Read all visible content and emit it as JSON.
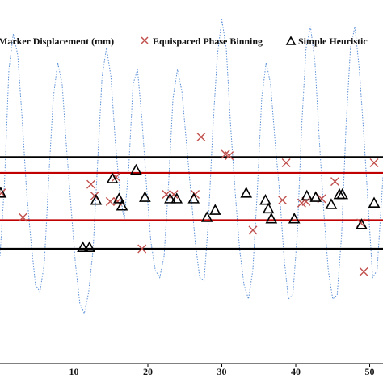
{
  "chart_data": {
    "type": "scatter",
    "title": "",
    "xlabel": "",
    "ylabel": "",
    "x_ticks": [
      10,
      20,
      30,
      40,
      50
    ],
    "x_tick_labels": [
      "10",
      "20",
      "30",
      "40",
      "50"
    ],
    "xlim": [
      0,
      51.8
    ],
    "ylim": [
      -12,
      12
    ],
    "grid": false,
    "legend_position": "top",
    "legend": [
      {
        "label": "Marker Displacement (mm)",
        "marker": "dotted-line",
        "color": "#5b8fd6"
      },
      {
        "label": "Equispaced Phase Binning",
        "marker": "x",
        "color": "#c0504d"
      },
      {
        "label": "Simple Heuristic",
        "marker": "triangle",
        "color": "#000000"
      }
    ],
    "reference_lines": [
      {
        "name": "outer-upper",
        "y": 2.4,
        "color": "#000000"
      },
      {
        "name": "inner-upper",
        "y": 1.3,
        "color": "#c00000"
      },
      {
        "name": "inner-lower",
        "y": -2.0,
        "color": "#c00000"
      },
      {
        "name": "outer-lower",
        "y": -4.0,
        "color": "#000000"
      }
    ],
    "series": [
      {
        "name": "Marker Displacement (mm)",
        "style": "dotted-line",
        "color": "#5b8fd6",
        "x": [
          0.0,
          0.6,
          1.2,
          1.8,
          2.4,
          3.0,
          3.6,
          4.2,
          4.8,
          5.4,
          6.0,
          6.6,
          7.2,
          7.8,
          8.4,
          9.0,
          9.6,
          10.2,
          10.8,
          11.4,
          12.0,
          12.6,
          13.2,
          13.8,
          14.4,
          15.0,
          15.6,
          16.2,
          16.8,
          17.4,
          18.0,
          18.6,
          19.2,
          19.8,
          20.4,
          21.0,
          21.6,
          22.2,
          22.8,
          23.4,
          24.0,
          24.6,
          25.2,
          25.8,
          26.4,
          27.0,
          27.6,
          28.2,
          28.8,
          29.4,
          30.0,
          30.6,
          31.2,
          31.8,
          32.4,
          33.0,
          33.6,
          34.2,
          34.8,
          35.4,
          36.0,
          36.6,
          37.2,
          37.8,
          38.4,
          39.0,
          39.6,
          40.2,
          40.8,
          41.4,
          42.0,
          42.6,
          43.2,
          43.8,
          44.4,
          45.0,
          45.6,
          46.2,
          46.8,
          47.4,
          48.0,
          48.6,
          49.2,
          49.8,
          50.4,
          51.0,
          51.8
        ],
        "y": [
          -4.5,
          0.5,
          8.5,
          11.0,
          9.5,
          5.0,
          0.0,
          -3.5,
          -6.5,
          -7.0,
          -5.0,
          1.0,
          6.5,
          9.0,
          7.5,
          3.0,
          -1.0,
          -5.0,
          -7.8,
          -8.5,
          -7.0,
          -4.0,
          2.0,
          8.0,
          10.0,
          8.0,
          3.5,
          0.0,
          -2.0,
          1.5,
          7.5,
          8.5,
          5.0,
          0.5,
          -3.5,
          -5.5,
          -6.0,
          -4.5,
          0.5,
          6.5,
          8.5,
          7.0,
          3.5,
          0.0,
          -3.5,
          -6.0,
          -6.2,
          -2.0,
          4.5,
          9.5,
          12.0,
          10.0,
          4.5,
          0.0,
          -4.0,
          -6.5,
          -7.5,
          -5.5,
          0.0,
          6.5,
          9.0,
          7.5,
          3.5,
          0.0,
          -4.5,
          -7.5,
          -7.2,
          -3.0,
          4.5,
          10.0,
          11.5,
          9.0,
          3.5,
          -1.5,
          -5.5,
          -7.5,
          -7.2,
          -3.0,
          4.5,
          10.0,
          11.5,
          8.5,
          4.0,
          -1.0,
          -6.0,
          -5.5,
          1.0
        ]
      },
      {
        "name": "Equispaced Phase Binning",
        "marker": "x",
        "color": "#c0504d",
        "x": [
          0.2,
          3.1,
          12.3,
          12.8,
          14.9,
          15.7,
          15.9,
          19.2,
          22.5,
          23.5,
          26.4,
          27.2,
          30.5,
          31.0,
          34.2,
          38.2,
          38.7,
          40.8,
          41.4,
          43.5,
          45.3,
          48.8,
          49.2,
          50.6
        ],
        "y": [
          -0.1,
          -1.8,
          0.5,
          -0.3,
          -0.7,
          1.0,
          -0.7,
          -4.0,
          -0.2,
          -0.2,
          -0.2,
          3.8,
          2.6,
          2.5,
          -2.7,
          -0.6,
          2.0,
          -0.8,
          -0.7,
          -0.5,
          0.7,
          -2.2,
          -5.6,
          2.0
        ]
      },
      {
        "name": "Simple Heuristic",
        "marker": "triangle",
        "color": "#000000",
        "x": [
          0.1,
          11.2,
          12.1,
          13.0,
          15.2,
          16.1,
          16.5,
          18.4,
          19.6,
          23.0,
          23.9,
          26.2,
          28.0,
          29.1,
          33.3,
          35.9,
          36.3,
          36.7,
          39.8,
          41.5,
          42.7,
          44.8,
          45.9,
          46.3,
          48.9,
          50.6
        ],
        "y": [
          -0.1,
          -3.9,
          -3.9,
          -0.6,
          0.9,
          -0.5,
          -1.0,
          1.5,
          -0.4,
          -0.5,
          -0.5,
          -0.5,
          -1.8,
          -1.3,
          -0.1,
          -0.6,
          -1.2,
          -1.9,
          -1.9,
          -0.3,
          -0.4,
          -0.9,
          -0.2,
          -0.2,
          -2.3,
          -0.8
        ]
      }
    ]
  }
}
